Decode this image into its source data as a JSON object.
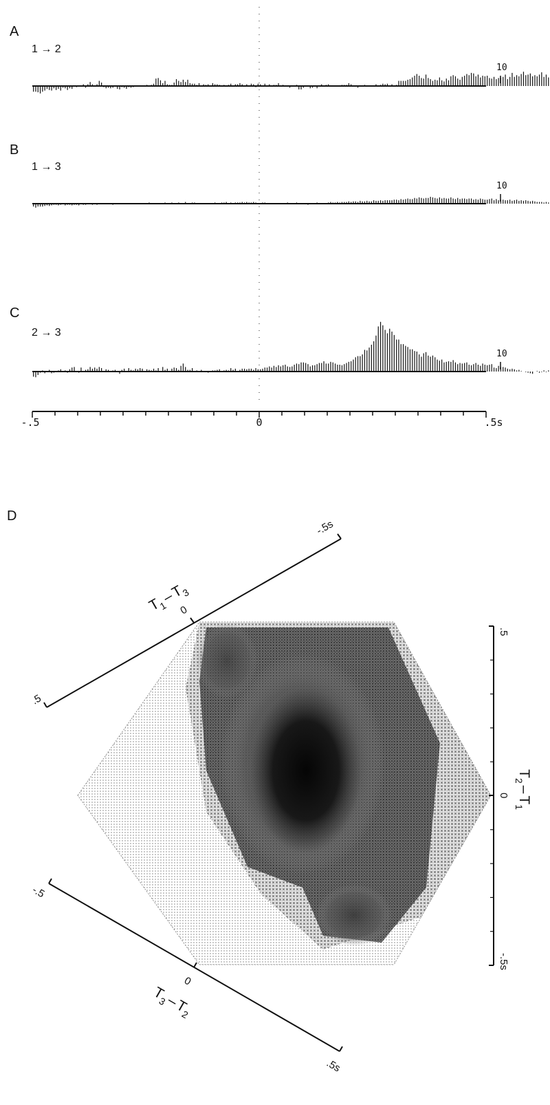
{
  "chart_data": [
    {
      "type": "bar",
      "panel": "A",
      "pair_label": "1 → 2",
      "scale_label": "10",
      "bin_start": -0.5,
      "bin_width": 0.005,
      "values": [
        -5.0,
        -5.0,
        -5.5,
        -6.5,
        -5.0,
        -4.0,
        -2.5,
        -3.5,
        -4.0,
        -2.0,
        -3.5,
        -2.5,
        -4.0,
        -1.5,
        -2.0,
        -3.5,
        -2.0,
        -2.5,
        -0.5,
        -1.0,
        -0.5,
        0.5,
        1.5,
        -1.5,
        1.5,
        3.5,
        1.5,
        0.0,
        1.5,
        4.5,
        3.0,
        -1.0,
        -2.0,
        -1.5,
        -2.0,
        -1.5,
        -0.5,
        -2.5,
        -3.0,
        -1.0,
        -1.5,
        -2.5,
        -1.0,
        -1.5,
        -1.0,
        -0.5,
        0.5,
        0.0,
        -0.5,
        0.5,
        1.0,
        -0.5,
        1.0,
        2.0,
        6.5,
        7.0,
        5.0,
        2.5,
        4.5,
        1.5,
        1.0,
        1.0,
        3.0,
        6.0,
        4.5,
        3.5,
        5.5,
        3.5,
        5.5,
        2.5,
        2.0,
        2.0,
        1.0,
        2.5,
        0.5,
        1.5,
        1.0,
        1.5,
        0.5,
        2.5,
        1.5,
        1.5,
        1.0,
        -0.5,
        1.0,
        0.5,
        1.0,
        2.0,
        0.5,
        1.5,
        1.5,
        2.5,
        1.5,
        0.0,
        1.5,
        0.5,
        2.0,
        1.5,
        -1.0,
        2.0,
        1.5,
        0.0,
        2.0,
        -0.5,
        1.5,
        0.0,
        1.0,
        1.0,
        2.5,
        0.5,
        1.0,
        0.0,
        -0.5,
        -1.5,
        0.5,
        0.0,
        1.0,
        -3.0,
        -3.0,
        -1.5,
        -0.5,
        -0.5,
        -2.0,
        -1.5,
        0.5,
        -2.0,
        0.5,
        1.5,
        -0.5,
        1.0,
        1.5,
        0.5,
        0.5,
        -0.5,
        -0.5,
        -0.5,
        1.0,
        1.0,
        1.0,
        2.5,
        1.5,
        -0.5,
        0.0,
        -1.5,
        -0.5,
        0.5,
        1.0,
        0.0,
        0.5,
        0.5,
        0.5,
        1.5,
        0.5,
        1.0,
        2.0,
        1.5,
        2.0,
        0.5,
        1.5,
        0.5,
        1.0,
        4.5,
        4.5,
        4.5,
        4.5,
        5.5,
        6.0,
        7.5,
        9.0,
        10.5,
        9.0,
        7.0,
        6.5,
        10.0,
        7.0,
        6.0,
        4.5,
        5.5,
        5.0,
        7.5,
        5.0,
        4.0,
        6.5,
        5.0,
        8.5,
        9.5,
        8.5,
        6.5,
        5.5,
        8.0,
        9.0,
        10.5,
        9.5,
        11.5,
        11.0,
        8.5,
        10.0,
        7.5,
        9.0,
        8.5,
        9.0,
        7.0,
        6.5,
        8.0,
        6.0,
        7.0,
        7.5,
        8.0,
        10.0,
        6.0,
        8.0,
        11.5,
        8.0,
        9.5,
        8.5,
        10.5,
        12.5,
        9.5,
        10.0,
        11.0,
        8.5,
        9.5,
        8.5,
        10.0,
        12.0,
        8.0,
        10.0,
        7.5,
        9.5,
        6.0,
        4.5,
        3.5,
        2.5,
        2.5,
        1.5,
        2.0,
        2.0,
        1.5,
        2.0,
        1.5,
        0.5,
        -1.5,
        -1.0,
        -2.0,
        -0.5,
        -2.0,
        -1.0,
        0.0,
        0.5,
        1.5,
        -1.5,
        -2.5,
        0.0,
        2.0,
        -0.5,
        0.0,
        -1.5,
        0.5,
        0.0,
        -0.5,
        -4.0,
        -1.0,
        -1.0,
        -1.5,
        1.5,
        1.0,
        0.0,
        2.0,
        1.0,
        0.5,
        2.0,
        0.0,
        0.5,
        0.5,
        -0.5,
        0.5,
        2.0,
        1.5,
        3.5,
        3.0,
        2.5,
        1.5,
        0.5,
        2.5,
        3.5,
        3.5,
        1.5,
        4.0,
        3.5,
        1.5,
        1.0,
        2.5,
        1.5,
        3.0,
        2.5,
        1.5,
        2.0,
        2.5,
        2.0
      ]
    },
    {
      "type": "bar",
      "panel": "B",
      "pair_label": "1 → 3",
      "scale_label": "10",
      "bin_start": -0.5,
      "bin_width": 0.005,
      "values": [
        -2.5,
        -3.5,
        -2.5,
        -2.5,
        -2.5,
        -2.0,
        -1.5,
        -2.0,
        -1.5,
        -1.0,
        -1.0,
        -1.5,
        -1.0,
        -0.5,
        -1.5,
        -1.0,
        -1.0,
        -1.5,
        -1.0,
        -1.0,
        -1.5,
        -0.5,
        -1.0,
        -1.0,
        -0.5,
        -0.5,
        -1.0,
        -0.5,
        -1.0,
        -0.5,
        -0.5,
        -0.5,
        -0.5,
        -0.5,
        -0.5,
        -1.0,
        -0.5,
        0.0,
        0.5,
        0.0,
        0.0,
        -0.5,
        0.0,
        0.5,
        0.5,
        -0.5,
        0.0,
        -0.5,
        0.0,
        -0.5,
        0.5,
        1.0,
        0.5,
        0.5,
        0.5,
        -0.5,
        0.5,
        0.5,
        1.0,
        0.5,
        0.0,
        1.0,
        0.5,
        0.5,
        1.0,
        0.5,
        0.5,
        1.5,
        0.5,
        0.5,
        1.0,
        1.0,
        0.5,
        0.5,
        0.5,
        0.0,
        -0.5,
        0.5,
        0.0,
        0.5,
        1.0,
        0.0,
        0.5,
        1.0,
        1.0,
        1.5,
        0.5,
        1.0,
        0.5,
        1.0,
        1.0,
        1.0,
        1.5,
        1.0,
        1.5,
        1.0,
        1.0,
        1.5,
        1.0,
        0.5,
        0.5,
        1.0,
        1.0,
        -0.5,
        -0.5,
        0.0,
        -0.5,
        0.5,
        0.0,
        0.0,
        -0.5,
        0.0,
        1.0,
        -0.5,
        0.0,
        -0.5,
        1.0,
        0.5,
        0.5,
        0.0,
        0.0,
        -1.0,
        0.5,
        0.0,
        -0.5,
        1.0,
        0.5,
        0.5,
        0.5,
        0.5,
        1.0,
        1.5,
        1.0,
        1.0,
        1.5,
        1.0,
        1.5,
        1.5,
        1.5,
        2.0,
        1.5,
        2.0,
        2.0,
        1.5,
        2.5,
        2.0,
        2.0,
        2.5,
        2.0,
        2.0,
        3.0,
        2.5,
        2.5,
        3.0,
        2.5,
        3.0,
        3.0,
        3.0,
        3.0,
        3.5,
        3.5,
        3.0,
        4.0,
        3.5,
        4.0,
        4.5,
        4.0,
        4.0,
        5.0,
        4.5,
        5.5,
        5.0,
        4.5,
        5.0,
        5.0,
        6.0,
        5.5,
        5.0,
        4.5,
        5.5,
        4.5,
        5.0,
        4.5,
        4.5,
        5.5,
        4.5,
        4.0,
        5.0,
        4.0,
        4.5,
        4.5,
        4.0,
        4.5,
        4.5,
        3.5,
        4.0,
        3.5,
        4.5,
        4.0,
        3.5,
        3.5,
        4.0,
        4.5,
        3.0,
        4.0,
        3.0,
        3.5,
        3.5,
        3.0,
        3.0,
        3.5,
        2.5,
        3.0,
        3.5,
        2.5,
        3.0,
        2.5,
        3.0,
        2.5,
        2.0,
        2.5,
        2.0,
        1.5,
        1.5,
        1.5,
        1.0,
        1.5,
        1.0,
        0.5,
        0.5,
        1.0,
        0.5,
        1.0,
        0.0,
        0.5,
        0.0,
        0.5,
        0.0,
        -0.5,
        -0.5,
        0.5,
        0.0,
        -0.5,
        0.5,
        -0.5,
        1.0,
        0.5,
        1.5,
        0.5,
        1.0,
        0.0,
        0.5,
        1.0,
        0.5,
        0.0,
        0.5,
        -0.5,
        0.0,
        0.5,
        1.0,
        0.5,
        0.5,
        0.0,
        -0.5,
        0.5,
        0.0,
        -0.5,
        0.0,
        0.5,
        1.0,
        0.5,
        0.5,
        -0.5,
        0.5,
        1.0,
        0.5,
        0.5,
        0.0,
        0.5,
        0.5,
        0.0,
        0.0,
        0.5,
        0.5,
        1.0,
        0.5,
        0.0,
        0.5,
        0.0,
        -0.5,
        0.5,
        0.0,
        -0.5,
        1.0,
        2.5,
        2.5,
        2.0,
        2.5,
        1.5,
        1.0,
        1.0,
        1.0
      ]
    },
    {
      "type": "bar",
      "panel": "C",
      "pair_label": "2 → 3",
      "scale_label": "10",
      "bin_start": -0.5,
      "bin_width": 0.005,
      "values": [
        -4.5,
        -5.0,
        -3.0,
        -1.0,
        1.0,
        -1.5,
        -0.5,
        1.5,
        -1.5,
        -1.0,
        0.5,
        1.0,
        2.0,
        -0.5,
        1.0,
        -1.0,
        2.0,
        3.5,
        4.0,
        -0.5,
        -1.0,
        3.5,
        0.5,
        1.5,
        2.0,
        4.0,
        2.5,
        3.5,
        2.5,
        4.0,
        3.0,
        -0.5,
        2.0,
        1.5,
        0.5,
        1.0,
        1.5,
        -0.5,
        -2.0,
        1.5,
        2.5,
        0.5,
        3.0,
        1.5,
        1.0,
        2.5,
        2.0,
        3.0,
        2.5,
        0.0,
        2.0,
        1.5,
        1.0,
        2.5,
        1.0,
        3.0,
        0.5,
        4.0,
        1.5,
        2.5,
        0.5,
        2.5,
        3.5,
        3.0,
        1.5,
        5.0,
        7.0,
        4.0,
        1.5,
        1.5,
        3.0,
        0.5,
        1.0,
        0.0,
        1.5,
        -0.5,
        0.5,
        -1.0,
        -0.5,
        1.0,
        1.0,
        1.5,
        2.0,
        0.5,
        1.0,
        1.5,
        1.0,
        3.0,
        1.5,
        2.5,
        -0.5,
        1.5,
        2.5,
        2.5,
        2.0,
        2.5,
        2.5,
        1.5,
        3.0,
        2.0,
        2.0,
        2.5,
        3.5,
        3.5,
        4.5,
        3.5,
        5.0,
        4.0,
        5.5,
        4.5,
        5.5,
        6.0,
        4.5,
        4.0,
        4.5,
        6.0,
        7.0,
        6.5,
        8.0,
        8.0,
        7.5,
        6.5,
        4.5,
        5.5,
        5.5,
        6.5,
        7.5,
        7.5,
        9.0,
        7.0,
        7.0,
        8.5,
        8.0,
        7.0,
        6.0,
        6.0,
        5.5,
        6.5,
        7.5,
        8.5,
        9.0,
        10.5,
        12.5,
        13.5,
        13.5,
        15.0,
        19.0,
        18.5,
        21.0,
        23.5,
        26.5,
        31.5,
        39.5,
        43.5,
        40.5,
        36.5,
        33.5,
        37.5,
        35.0,
        32.0,
        28.0,
        28.0,
        24.0,
        24.0,
        22.5,
        21.5,
        19.5,
        19.5,
        18.0,
        17.5,
        15.0,
        13.0,
        16.0,
        17.0,
        14.0,
        13.0,
        14.0,
        12.5,
        10.5,
        9.5,
        10.5,
        8.0,
        8.5,
        9.0,
        8.5,
        10.0,
        8.0,
        6.5,
        7.5,
        7.0,
        7.5,
        8.0,
        6.0,
        5.5,
        6.5,
        7.5,
        6.0,
        5.0,
        7.0,
        6.0,
        5.5,
        6.0,
        6.5,
        3.5,
        3.0,
        5.0,
        4.0,
        4.0,
        3.5,
        2.5,
        2.0,
        2.5,
        2.0,
        1.0,
        1.5,
        0.5,
        0.0,
        -0.5,
        -1.0,
        -1.5,
        -2.0,
        0.0,
        0.5,
        -1.0,
        -0.5,
        1.0,
        -0.5,
        1.0,
        0.5,
        0.5,
        1.0,
        -0.5,
        1.5,
        -1.5,
        0.0,
        -3.5,
        -1.5,
        0.0,
        2.5,
        -1.0,
        0.5,
        -1.5,
        0.0,
        2.5,
        2.0,
        2.5,
        -1.0,
        2.5,
        2.5,
        2.0,
        2.0,
        1.5,
        1.0,
        2.5,
        2.0,
        2.0,
        -1.0,
        1.5,
        0.0,
        2.0,
        3.5,
        3.5,
        4.0,
        2.5,
        -0.5,
        1.5,
        4.0,
        0.5,
        2.5,
        -0.5,
        2.0,
        -0.5,
        3.5,
        1.5,
        1.5,
        2.5,
        3.5,
        1.5,
        3.0,
        3.5,
        3.0,
        3.5,
        3.0,
        -1.0,
        0.5,
        3.5,
        2.5,
        -4.0,
        1.5,
        0.5,
        2.5,
        -3.0,
        2.5,
        0.0,
        0.5,
        0.5,
        -0.5,
        0.5,
        -0.5
      ]
    },
    {
      "type": "heatmap",
      "panel": "D",
      "axes": [
        {
          "label_main": "T",
          "sub1": "1",
          "sep": "–",
          "label_second": "T",
          "sub2": "3",
          "tick_min": ".5",
          "tick_zero": "0",
          "tick_max": "-.5s"
        },
        {
          "label_main": "T",
          "sub1": "2",
          "sep": "–",
          "label_second": "T",
          "sub2": "1",
          "tick_min": "-.5s",
          "tick_zero": "0",
          "tick_max": ".5"
        },
        {
          "label_main": "T",
          "sub1": "3",
          "sep": "–",
          "label_second": "T",
          "sub2": "2",
          "tick_min": "-.5",
          "tick_zero": "0",
          "tick_max": ".5s"
        }
      ]
    }
  ],
  "panels": {
    "A": {
      "letter": "A"
    },
    "B": {
      "letter": "B"
    },
    "C": {
      "letter": "C"
    },
    "D": {
      "letter": "D"
    }
  },
  "time_axis": {
    "tick_labels": [
      "-.5",
      "0",
      ".5s"
    ],
    "range_s": [
      -0.5,
      0.5
    ]
  }
}
